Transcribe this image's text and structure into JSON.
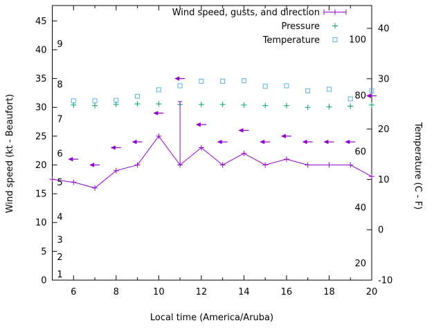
{
  "chart_data": {
    "type": "line",
    "title": "",
    "xlabel": "Local time (America/Aruba)",
    "ylabel_left": "Wind speed (kt - Beaufort)",
    "ylabel_right": "Temperature (C - F)",
    "legend": {
      "position": "top-right-inside",
      "wind": "Wind speed, gusts, and direction",
      "pressure": "Pressure",
      "temperature": "Temperature"
    },
    "colors": {
      "wind": "#9400d3",
      "pressure": "#009e73",
      "temperature": "#56b4e9",
      "axis": "#000000",
      "background": "#ffffff"
    },
    "x_axis": {
      "range": [
        5,
        20
      ],
      "ticks": [
        6,
        8,
        10,
        12,
        14,
        16,
        18,
        20
      ],
      "minor_ticks": [
        5,
        7,
        9,
        11,
        13,
        15,
        17,
        19
      ]
    },
    "y_axis_left": {
      "range": [
        0,
        47.5
      ],
      "ticks": [
        0,
        5,
        10,
        15,
        20,
        25,
        30,
        35,
        40,
        45
      ],
      "beaufort_labels": [
        {
          "b": "1",
          "kt": 1
        },
        {
          "b": "2",
          "kt": 4
        },
        {
          "b": "3",
          "kt": 7
        },
        {
          "b": "4",
          "kt": 11
        },
        {
          "b": "5",
          "kt": 17
        },
        {
          "b": "6",
          "kt": 22
        },
        {
          "b": "7",
          "kt": 28
        },
        {
          "b": "8",
          "kt": 34
        },
        {
          "b": "9",
          "kt": 41
        }
      ]
    },
    "y_axis_right": {
      "range_c": [
        -10,
        40
      ],
      "ticks_c": [
        -10,
        0,
        10,
        20,
        30,
        40
      ],
      "fahrenheit_labels": [
        20,
        40,
        60,
        80,
        100
      ]
    },
    "wind": {
      "hours": [
        5,
        6,
        7,
        8,
        9,
        10,
        11,
        12,
        13,
        14,
        15,
        16,
        17,
        18,
        19,
        20
      ],
      "speed_kt": [
        17.5,
        17,
        16,
        19,
        20,
        25,
        20,
        23,
        20,
        22,
        20,
        21,
        20,
        20,
        20,
        18
      ],
      "gust_arrows": [
        {
          "hour": 6,
          "kt": 21
        },
        {
          "hour": 7,
          "kt": 20
        },
        {
          "hour": 8,
          "kt": 23
        },
        {
          "hour": 9,
          "kt": 24
        },
        {
          "hour": 10,
          "kt": 29
        },
        {
          "hour": 11,
          "kt": 35
        },
        {
          "hour": 12,
          "kt": 27
        },
        {
          "hour": 13,
          "kt": 24
        },
        {
          "hour": 14,
          "kt": 26
        },
        {
          "hour": 15,
          "kt": 24
        },
        {
          "hour": 16,
          "kt": 25
        },
        {
          "hour": 17,
          "kt": 24
        },
        {
          "hour": 18,
          "kt": 24
        },
        {
          "hour": 19,
          "kt": 24
        },
        {
          "hour": 20,
          "kt": 32
        }
      ],
      "gust_bar": {
        "hour": 11,
        "from_kt": 20,
        "to_kt": 31
      }
    },
    "pressure": {
      "hours": [
        6,
        7,
        8,
        9,
        10,
        11,
        12,
        13,
        14,
        15,
        16,
        17,
        18,
        19,
        20
      ],
      "values": [
        30.4,
        30.3,
        30.5,
        30.6,
        30.6,
        30.5,
        30.5,
        30.5,
        30.4,
        30.3,
        30.3,
        30.0,
        30.1,
        30.2,
        30.4
      ]
    },
    "temperature": {
      "hours": [
        6,
        7,
        8,
        9,
        10,
        11,
        12,
        13,
        14,
        15,
        16,
        17,
        18,
        19,
        20
      ],
      "values_c": [
        25.6,
        25.6,
        25.7,
        26.5,
        27.8,
        28.6,
        29.5,
        29.5,
        29.6,
        28.5,
        28.6,
        27.6,
        27.9,
        26.0,
        27.6
      ]
    }
  }
}
